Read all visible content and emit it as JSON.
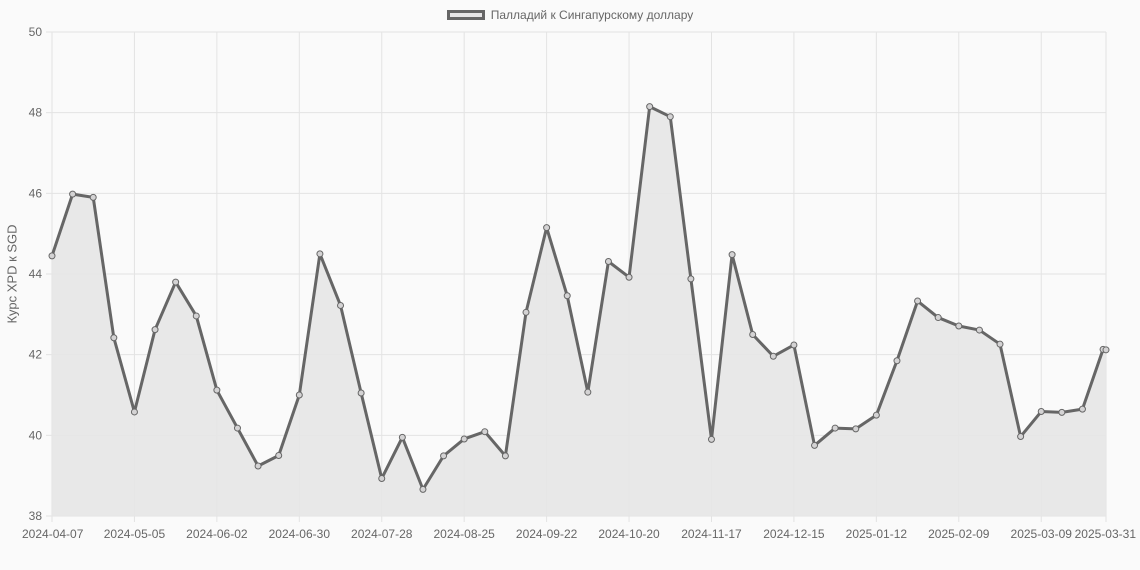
{
  "chart_data": {
    "type": "area",
    "ylabel": "Курс XPD к SGD",
    "xlabel": "",
    "ylim": [
      38,
      50
    ],
    "y_ticks": [
      38,
      40,
      42,
      44,
      46,
      48,
      50
    ],
    "x_tick_labels": [
      "2024-04-07",
      "2024-05-05",
      "2024-06-02",
      "2024-06-30",
      "2024-07-28",
      "2024-08-25",
      "2024-09-22",
      "2024-10-20",
      "2024-11-17",
      "2024-12-15",
      "2025-01-12",
      "2025-02-09",
      "2025-03-09",
      "2025-03-31"
    ],
    "grid": true,
    "legend_position": "top",
    "colors": {
      "line": "#666666",
      "fill": "#e6e5e6",
      "grid": "#e3e3e3"
    },
    "series": [
      {
        "name": "Палладий к Сингапурскому доллару",
        "x": [
          "2024-04-07",
          "2024-04-14",
          "2024-04-21",
          "2024-04-28",
          "2024-05-05",
          "2024-05-12",
          "2024-05-19",
          "2024-05-26",
          "2024-06-02",
          "2024-06-09",
          "2024-06-16",
          "2024-06-23",
          "2024-06-30",
          "2024-07-07",
          "2024-07-14",
          "2024-07-21",
          "2024-07-28",
          "2024-08-04",
          "2024-08-11",
          "2024-08-18",
          "2024-08-25",
          "2024-09-01",
          "2024-09-08",
          "2024-09-15",
          "2024-09-22",
          "2024-09-29",
          "2024-10-06",
          "2024-10-13",
          "2024-10-20",
          "2024-10-27",
          "2024-11-03",
          "2024-11-10",
          "2024-11-17",
          "2024-11-24",
          "2024-12-01",
          "2024-12-08",
          "2024-12-15",
          "2024-12-22",
          "2024-12-29",
          "2025-01-05",
          "2025-01-12",
          "2025-01-19",
          "2025-01-26",
          "2025-02-02",
          "2025-02-09",
          "2025-02-16",
          "2025-02-23",
          "2025-03-02",
          "2025-03-09",
          "2025-03-16",
          "2025-03-23",
          "2025-03-30",
          "2025-03-31"
        ],
        "values": [
          44.45,
          45.98,
          45.9,
          42.42,
          40.58,
          42.62,
          43.8,
          42.96,
          41.12,
          40.18,
          39.24,
          39.5,
          41.0,
          44.5,
          43.22,
          41.05,
          38.93,
          39.95,
          38.66,
          39.49,
          39.91,
          40.09,
          39.49,
          43.05,
          45.15,
          43.46,
          41.07,
          44.31,
          43.92,
          48.15,
          47.9,
          43.88,
          39.9,
          44.48,
          42.5,
          41.96,
          42.24,
          39.75,
          40.18,
          40.16,
          40.5,
          41.85,
          43.33,
          42.92,
          42.71,
          42.61,
          42.26,
          39.97,
          40.59,
          40.57,
          40.65,
          42.13,
          42.12
        ]
      }
    ]
  }
}
